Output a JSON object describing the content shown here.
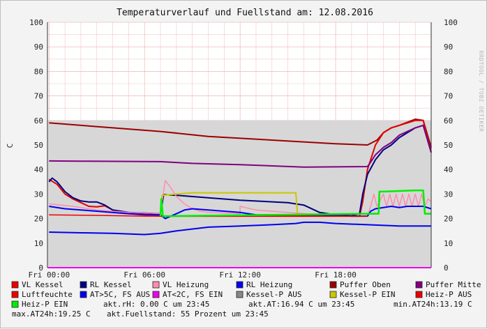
{
  "chart_data": {
    "type": "line",
    "title": "Temperaturverlauf und Fuellstand am: 12.08.2016",
    "watermark": "RRDTOOL / TOBI OETIKER",
    "ylabel": "C",
    "ylim": [
      0,
      100
    ],
    "yticks": [
      0,
      10,
      20,
      30,
      40,
      50,
      60,
      70,
      80,
      90,
      100
    ],
    "xlim": [
      -0.1,
      24
    ],
    "xticks": [
      {
        "hour": 0,
        "label": "Fri 00:00"
      },
      {
        "hour": 6,
        "label": "Fri 06:00"
      },
      {
        "hour": 12,
        "label": "Fri 12:00"
      },
      {
        "hour": 18,
        "label": "Fri 18:00"
      }
    ],
    "background_area": {
      "name": "Fuellstand",
      "value": 60,
      "fill": "#d7d7d7"
    },
    "series": [
      {
        "name": "Puffer Oben",
        "color": "#9b0000",
        "width": 2,
        "points": [
          [
            0,
            59
          ],
          [
            3,
            57.5
          ],
          [
            7,
            55.5
          ],
          [
            10,
            53.5
          ],
          [
            14,
            52
          ],
          [
            18,
            50.5
          ],
          [
            20,
            50
          ],
          [
            20.6,
            52
          ],
          [
            21,
            55
          ],
          [
            21.5,
            57
          ],
          [
            22,
            58
          ],
          [
            23,
            60.5
          ],
          [
            23.5,
            60
          ],
          [
            24,
            49
          ]
        ]
      },
      {
        "name": "VL Kessel",
        "color": "#e00000",
        "width": 2,
        "points": [
          [
            0,
            36
          ],
          [
            0.5,
            34
          ],
          [
            1,
            30
          ],
          [
            1.5,
            28
          ],
          [
            2,
            26.5
          ],
          [
            2.5,
            25
          ],
          [
            3,
            24.8
          ],
          [
            3.5,
            25.2
          ],
          [
            4,
            23.5
          ],
          [
            5,
            22
          ],
          [
            7,
            21
          ],
          [
            10,
            21
          ],
          [
            14,
            21
          ],
          [
            18,
            21
          ],
          [
            19.5,
            21
          ],
          [
            19.7,
            27
          ],
          [
            20,
            40
          ],
          [
            20.5,
            50
          ],
          [
            21,
            55
          ],
          [
            21.5,
            57
          ],
          [
            22,
            58
          ],
          [
            23,
            60
          ],
          [
            23.5,
            60
          ],
          [
            24,
            47
          ]
        ]
      },
      {
        "name": "RL Kessel",
        "color": "#000080",
        "width": 2,
        "points": [
          [
            0,
            35
          ],
          [
            0.2,
            36.5
          ],
          [
            0.5,
            35
          ],
          [
            1,
            31
          ],
          [
            1.5,
            28.5
          ],
          [
            2,
            27.2
          ],
          [
            2.5,
            26.8
          ],
          [
            3,
            26.8
          ],
          [
            3.5,
            25.5
          ],
          [
            4,
            23.5
          ],
          [
            5,
            22.5
          ],
          [
            7,
            22
          ],
          [
            7.2,
            29.8
          ],
          [
            8,
            29.5
          ],
          [
            10,
            28.5
          ],
          [
            12,
            27.5
          ],
          [
            15,
            26.5
          ],
          [
            16,
            25.5
          ],
          [
            17,
            22.5
          ],
          [
            18,
            21.5
          ],
          [
            19,
            21.2
          ],
          [
            19.5,
            22
          ],
          [
            19.7,
            30
          ],
          [
            20,
            38
          ],
          [
            20.5,
            44
          ],
          [
            21,
            48
          ],
          [
            21.5,
            50
          ],
          [
            22,
            53
          ],
          [
            22.5,
            55
          ],
          [
            23,
            57
          ],
          [
            23.5,
            58
          ],
          [
            24,
            47
          ]
        ]
      },
      {
        "name": "Puffer Mitte",
        "color": "#800080",
        "width": 2,
        "points": [
          [
            0,
            43.5
          ],
          [
            2,
            43.4
          ],
          [
            7,
            43.2
          ],
          [
            9,
            42.5
          ],
          [
            12,
            42
          ],
          [
            16,
            41
          ],
          [
            20,
            41.2
          ],
          [
            20.2,
            43
          ],
          [
            20.5,
            46
          ],
          [
            21,
            49
          ],
          [
            21.5,
            51
          ],
          [
            22,
            54
          ],
          [
            23,
            57
          ],
          [
            23.5,
            58
          ],
          [
            24,
            47
          ]
        ]
      },
      {
        "name": "VL Heizung",
        "color": "#ff8cae",
        "width": 1.5,
        "points": [
          [
            0,
            26
          ],
          [
            1.5,
            25
          ],
          [
            3,
            23.5
          ],
          [
            5,
            22.5
          ],
          [
            7,
            22
          ],
          [
            7.1,
            27
          ],
          [
            7.3,
            35.5
          ],
          [
            7.6,
            33
          ],
          [
            8,
            29
          ],
          [
            8.5,
            26
          ],
          [
            9,
            24
          ],
          [
            9.5,
            23
          ],
          [
            10,
            22.5
          ],
          [
            12,
            22
          ],
          [
            12,
            25
          ],
          [
            13,
            23.5
          ],
          [
            15,
            22.5
          ],
          [
            17,
            21.5
          ],
          [
            19,
            21
          ],
          [
            20,
            21
          ],
          [
            20.2,
            25
          ],
          [
            20.4,
            30
          ],
          [
            20.6,
            25
          ],
          [
            21,
            30
          ],
          [
            21.2,
            25
          ],
          [
            21.4,
            30
          ],
          [
            21.6,
            25
          ],
          [
            21.8,
            30
          ],
          [
            22,
            25
          ],
          [
            22.2,
            30
          ],
          [
            22.4,
            25
          ],
          [
            22.6,
            30
          ],
          [
            22.8,
            25
          ],
          [
            23,
            30
          ],
          [
            23.2,
            25
          ],
          [
            23.4,
            30
          ],
          [
            23.6,
            25
          ],
          [
            23.8,
            28
          ],
          [
            24,
            27
          ]
        ]
      },
      {
        "name": "RL Heizung",
        "color": "#0000ee",
        "width": 2,
        "points": [
          [
            0,
            25
          ],
          [
            1,
            24
          ],
          [
            3,
            23
          ],
          [
            5,
            22
          ],
          [
            7,
            21.5
          ],
          [
            7.3,
            20
          ],
          [
            8,
            22
          ],
          [
            8.5,
            23.5
          ],
          [
            9,
            24
          ],
          [
            10,
            23.5
          ],
          [
            12,
            22.5
          ],
          [
            13,
            21.5
          ],
          [
            15,
            21.5
          ],
          [
            17,
            21.5
          ],
          [
            19,
            21
          ],
          [
            20,
            21
          ],
          [
            20.2,
            23
          ],
          [
            20.5,
            24
          ],
          [
            21,
            24.5
          ],
          [
            21.5,
            25
          ],
          [
            22,
            24.5
          ],
          [
            22.5,
            25
          ],
          [
            23,
            25
          ],
          [
            23.5,
            25
          ],
          [
            24,
            24
          ]
        ]
      },
      {
        "name": "Luftfeuchte",
        "color": "#ee0000",
        "width": 1.5,
        "points": [
          [
            0,
            21.5
          ],
          [
            3,
            21.3
          ],
          [
            6,
            21
          ],
          [
            12,
            21
          ],
          [
            18,
            21
          ],
          [
            20,
            21
          ]
        ]
      },
      {
        "name": "AT>5C, FS AUS",
        "color": "#0000ee",
        "width": 2,
        "points": [
          [
            0,
            14.5
          ],
          [
            2,
            14.2
          ],
          [
            4,
            14
          ],
          [
            6,
            13.5
          ],
          [
            7,
            14
          ],
          [
            8,
            15
          ],
          [
            10,
            16.5
          ],
          [
            12,
            17
          ],
          [
            14,
            17.5
          ],
          [
            15.5,
            18
          ],
          [
            16,
            18.5
          ],
          [
            17,
            18.5
          ],
          [
            18,
            18
          ],
          [
            20,
            17.5
          ],
          [
            22,
            17
          ],
          [
            24,
            17
          ]
        ]
      },
      {
        "name": "Kessel-P EIN",
        "color": "#c8c800",
        "width": 2,
        "points": [
          [
            7,
            21
          ],
          [
            7.1,
            29.5
          ],
          [
            8,
            30
          ],
          [
            9,
            30.5
          ],
          [
            12,
            30.5
          ],
          [
            14,
            30.5
          ],
          [
            15.5,
            30.5
          ],
          [
            15.6,
            22
          ]
        ]
      },
      {
        "name": "Heiz-P EIN",
        "color": "#00ee00",
        "width": 2.5,
        "points": [
          [
            7,
            21
          ],
          [
            7.05,
            28
          ],
          [
            7.15,
            21
          ],
          [
            20,
            22
          ],
          [
            20.7,
            22
          ],
          [
            20.75,
            31
          ],
          [
            21,
            31
          ],
          [
            23,
            31.5
          ],
          [
            23.5,
            31.5
          ],
          [
            23.6,
            22
          ],
          [
            24,
            22
          ]
        ]
      }
    ],
    "legend": [
      {
        "label": "VL Kessel",
        "color": "#ee0000"
      },
      {
        "label": "RL Kessel",
        "color": "#000080"
      },
      {
        "label": "VL Heizung",
        "color": "#ff8cae"
      },
      {
        "label": "RL Heizung",
        "color": "#0000ee"
      },
      {
        "label": "Puffer Oben",
        "color": "#9b0000"
      },
      {
        "label": "Puffer Mitte",
        "color": "#800080"
      },
      {
        "label": "Luftfeuchte",
        "color": "#ee0000"
      },
      {
        "label": "AT>5C, FS AUS",
        "color": "#0000ee"
      },
      {
        "label": "AT<2C, FS EIN",
        "color": "#ee00ee"
      },
      {
        "label": "Kessel-P AUS",
        "color": "#888888"
      },
      {
        "label": "Kessel-P EIN",
        "color": "#c8c800"
      },
      {
        "label": "Heiz-P AUS",
        "color": "#ee0000"
      },
      {
        "label": "Heiz-P EIN",
        "color": "#00ee00"
      }
    ],
    "stats": [
      "akt.rH: 0.00 C um 23:45",
      "akt.AT:16.94 C um 23:45",
      "min.AT24h:13.19 C",
      "max.AT24h:19.25 C",
      "akt.Fuellstand:   55 Prozent um 23:45"
    ]
  }
}
